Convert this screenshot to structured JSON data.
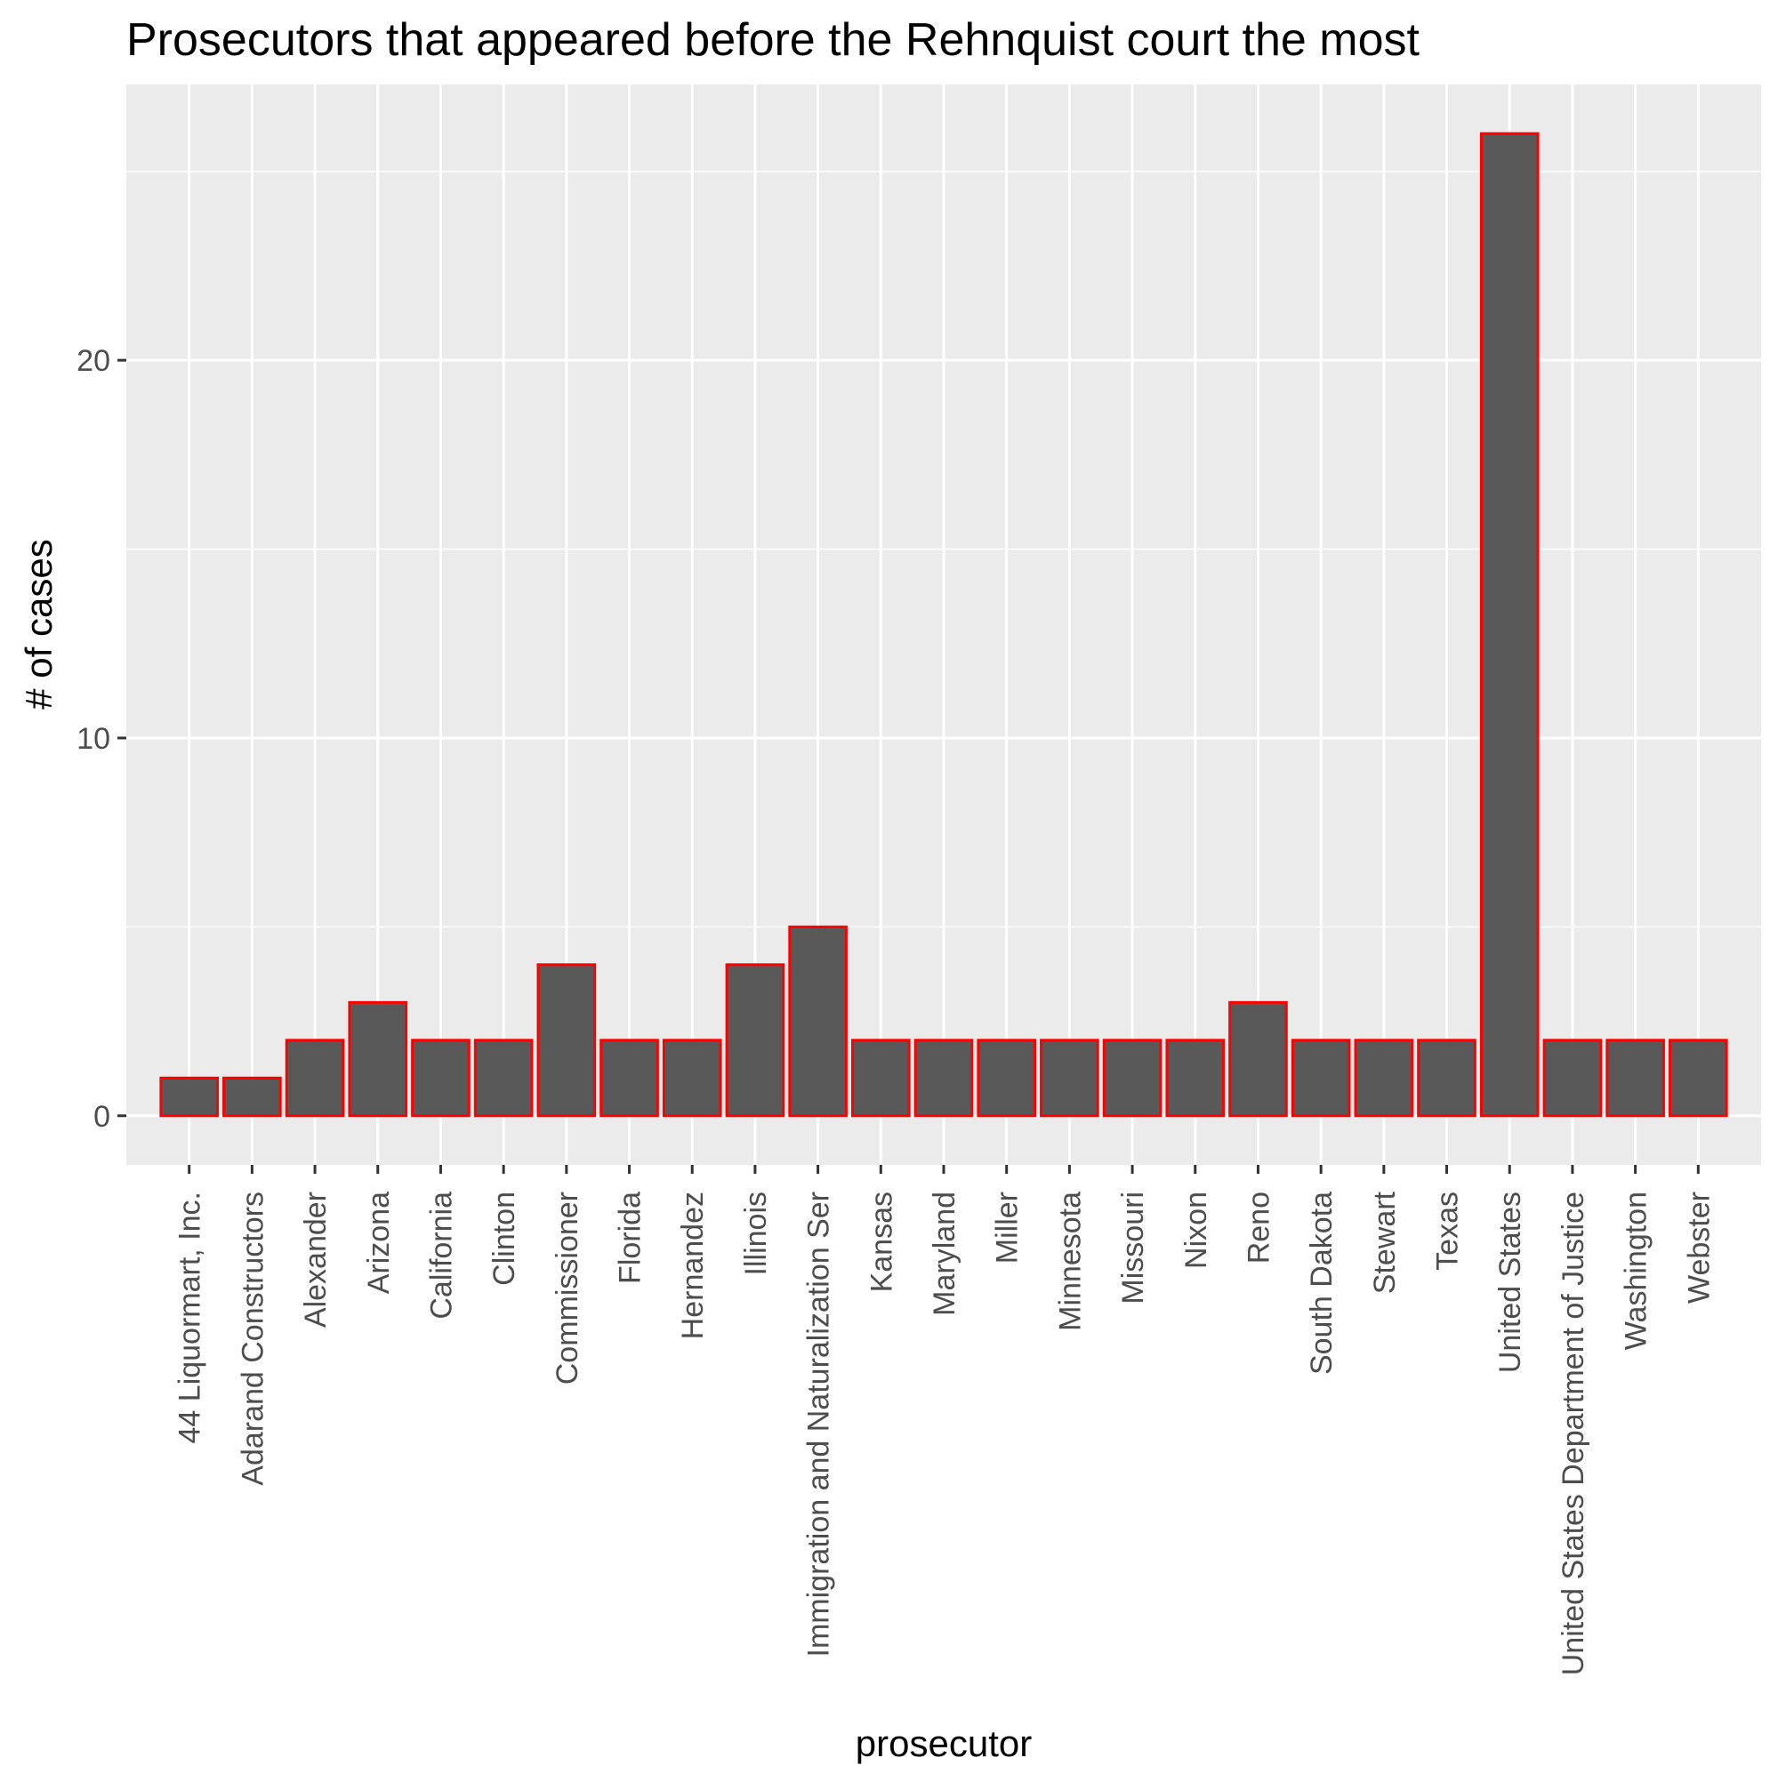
{
  "chart_data": {
    "type": "bar",
    "title": "Prosecutors that appeared before the Rehnquist court the most",
    "xlabel": "prosecutor",
    "ylabel": "# of cases",
    "categories": [
      "44 Liquormart, Inc.",
      "Adarand Constructors",
      "Alexander",
      "Arizona",
      "California",
      "Clinton",
      "Commissioner",
      "Florida",
      "Hernandez",
      "Illinois",
      "Immigration and Naturalization Ser",
      "Kansas",
      "Maryland",
      "Miller",
      "Minnesota",
      "Missouri",
      "Nixon",
      "Reno",
      "South Dakota",
      "Stewart",
      "Texas",
      "United States",
      "United States Department of Justice",
      "Washington",
      "Webster"
    ],
    "values": [
      1,
      1,
      2,
      3,
      2,
      2,
      4,
      2,
      2,
      4,
      5,
      2,
      2,
      2,
      2,
      2,
      2,
      3,
      2,
      2,
      2,
      26,
      2,
      2,
      2
    ],
    "ylim": [
      -1.3,
      27.3
    ],
    "yticks": [
      0,
      10,
      20
    ],
    "grid": true,
    "bar_fill": "#595959",
    "bar_outline": "#ff0000",
    "panel_background": "#ebebeb",
    "grid_color": "#ffffff"
  }
}
